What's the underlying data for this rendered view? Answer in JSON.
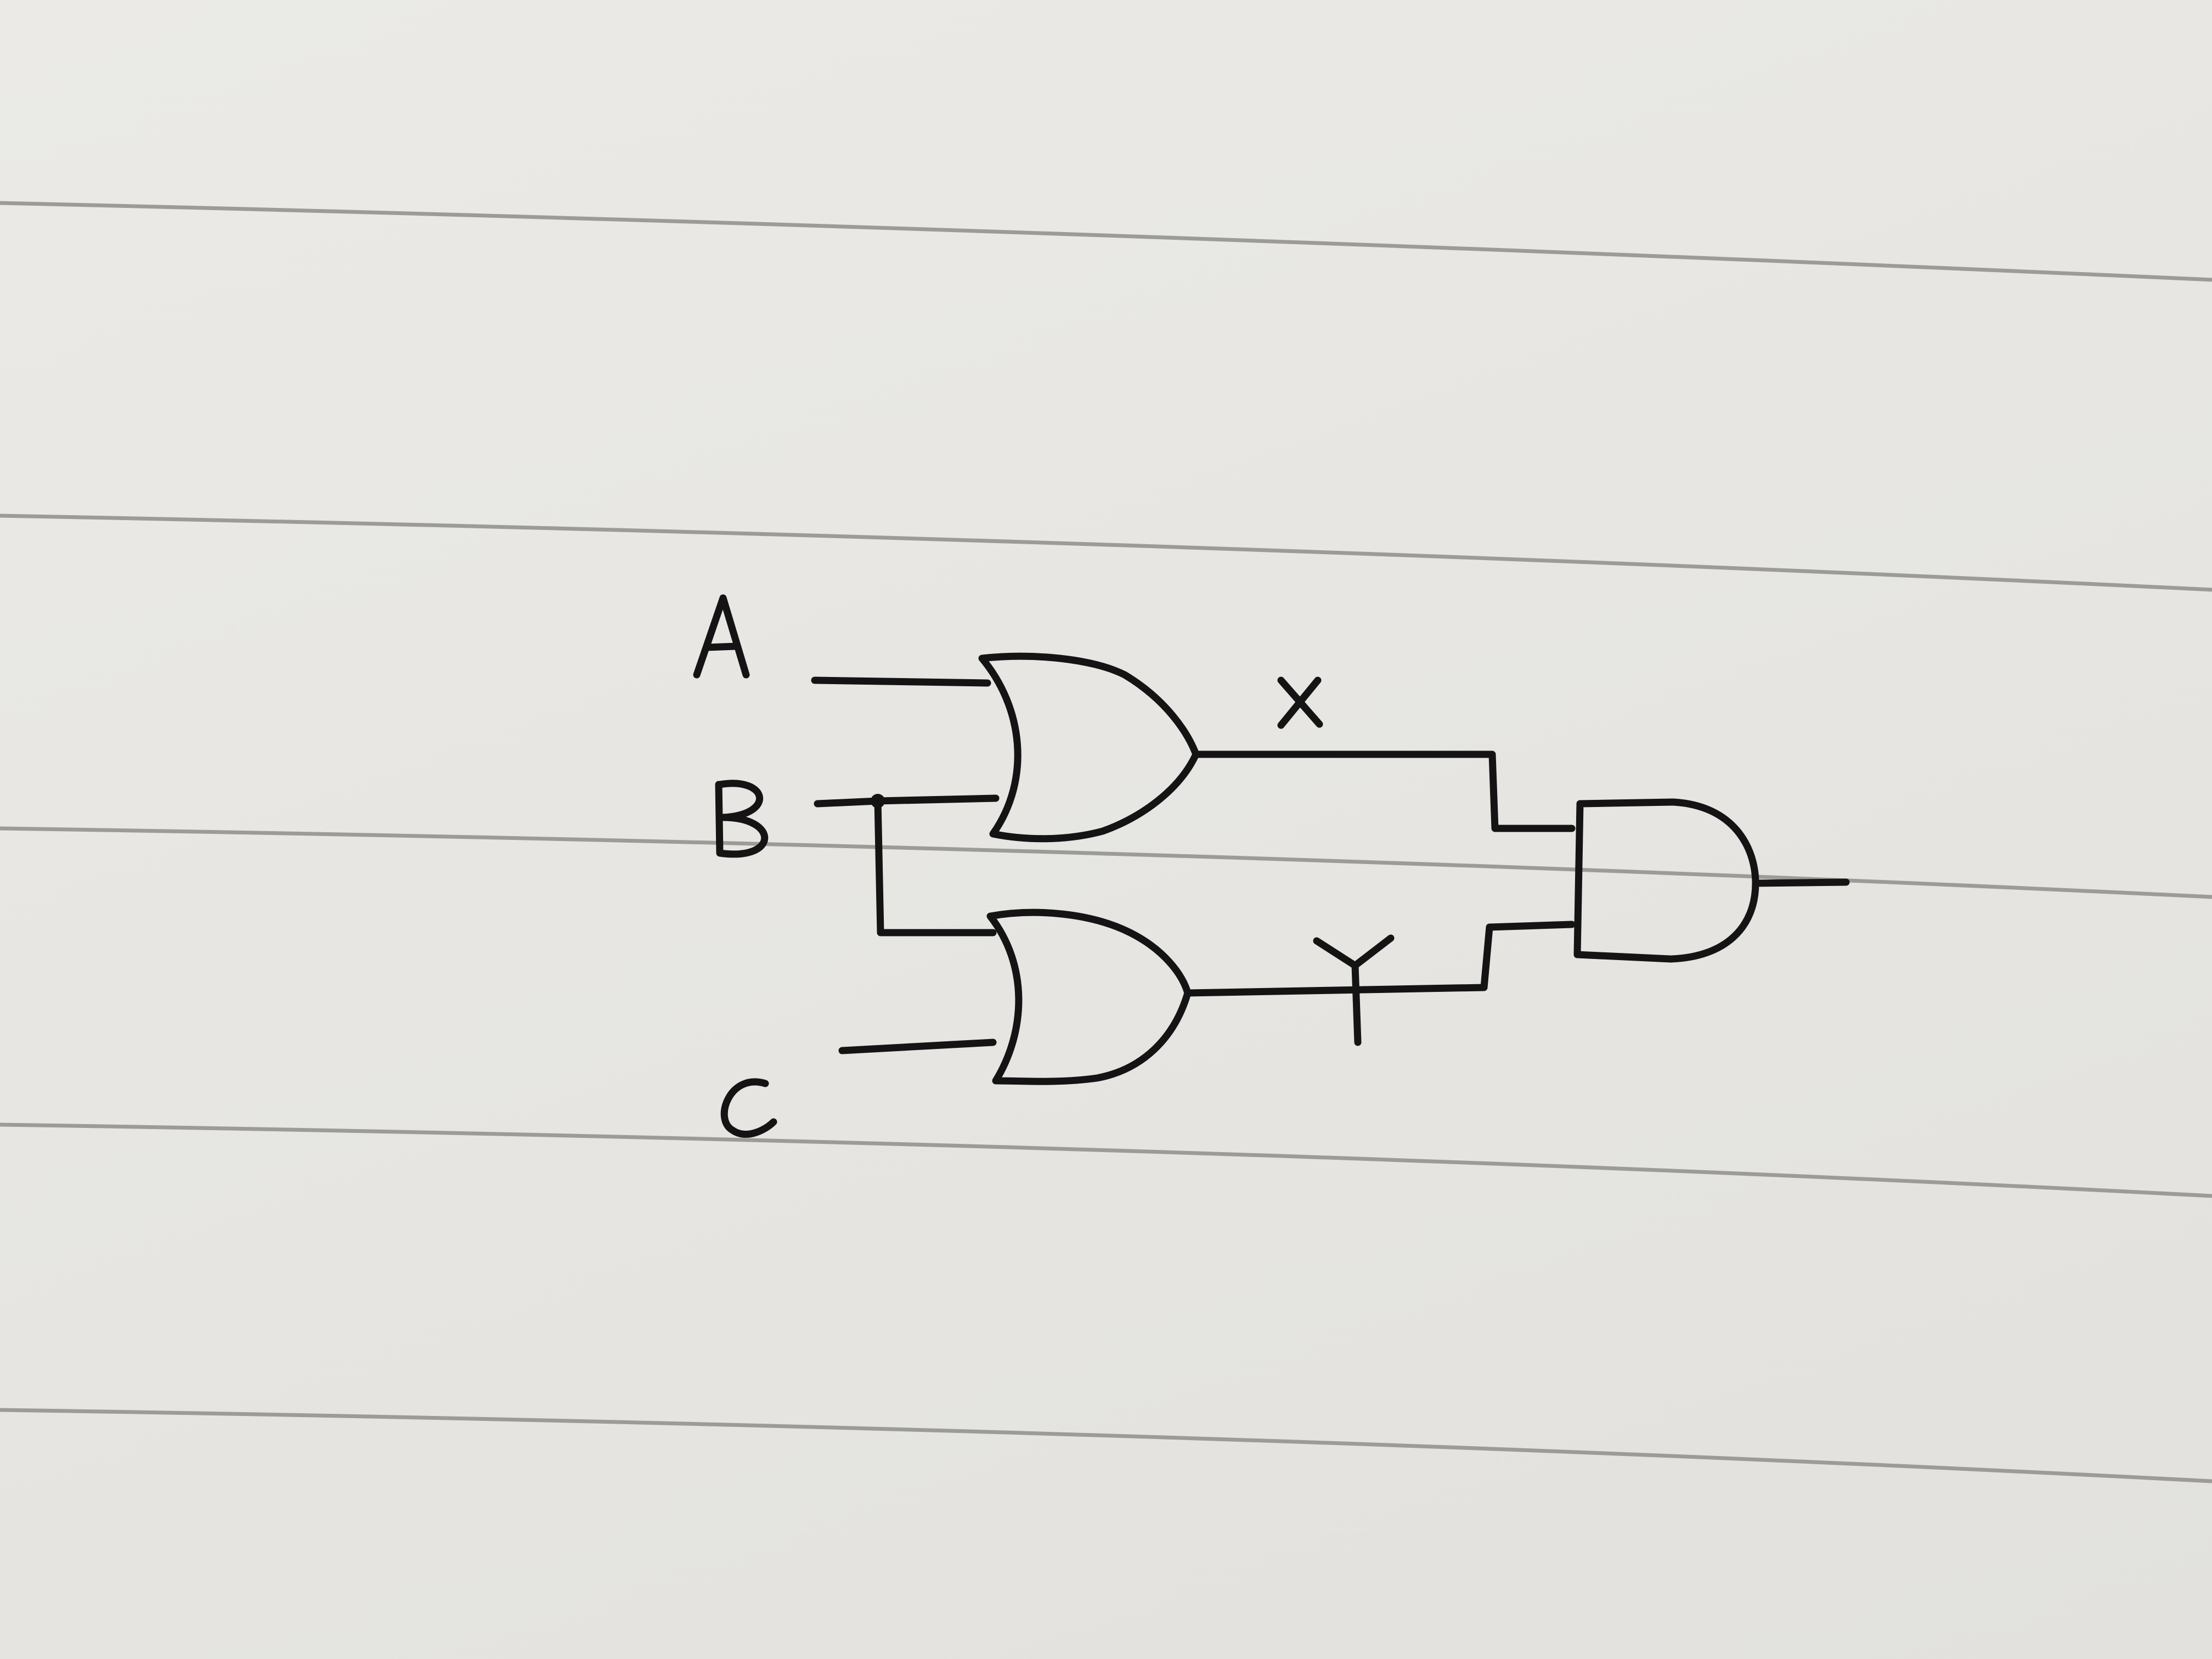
{
  "diagram": {
    "inputs": [
      "A",
      "B",
      "C"
    ],
    "intermediates": [
      "X",
      "Y"
    ],
    "gates": [
      {
        "id": "or-1",
        "type": "OR",
        "inputs": [
          "A",
          "B"
        ],
        "output": "X"
      },
      {
        "id": "or-2",
        "type": "OR",
        "inputs": [
          "B",
          "C"
        ],
        "output": "Y"
      },
      {
        "id": "and-1",
        "type": "AND",
        "inputs": [
          "X",
          "Y"
        ],
        "output": ""
      }
    ],
    "colors": {
      "paper": "#e7e6e2",
      "ruled_line": "#9d9b97",
      "ink": "#141414"
    }
  }
}
